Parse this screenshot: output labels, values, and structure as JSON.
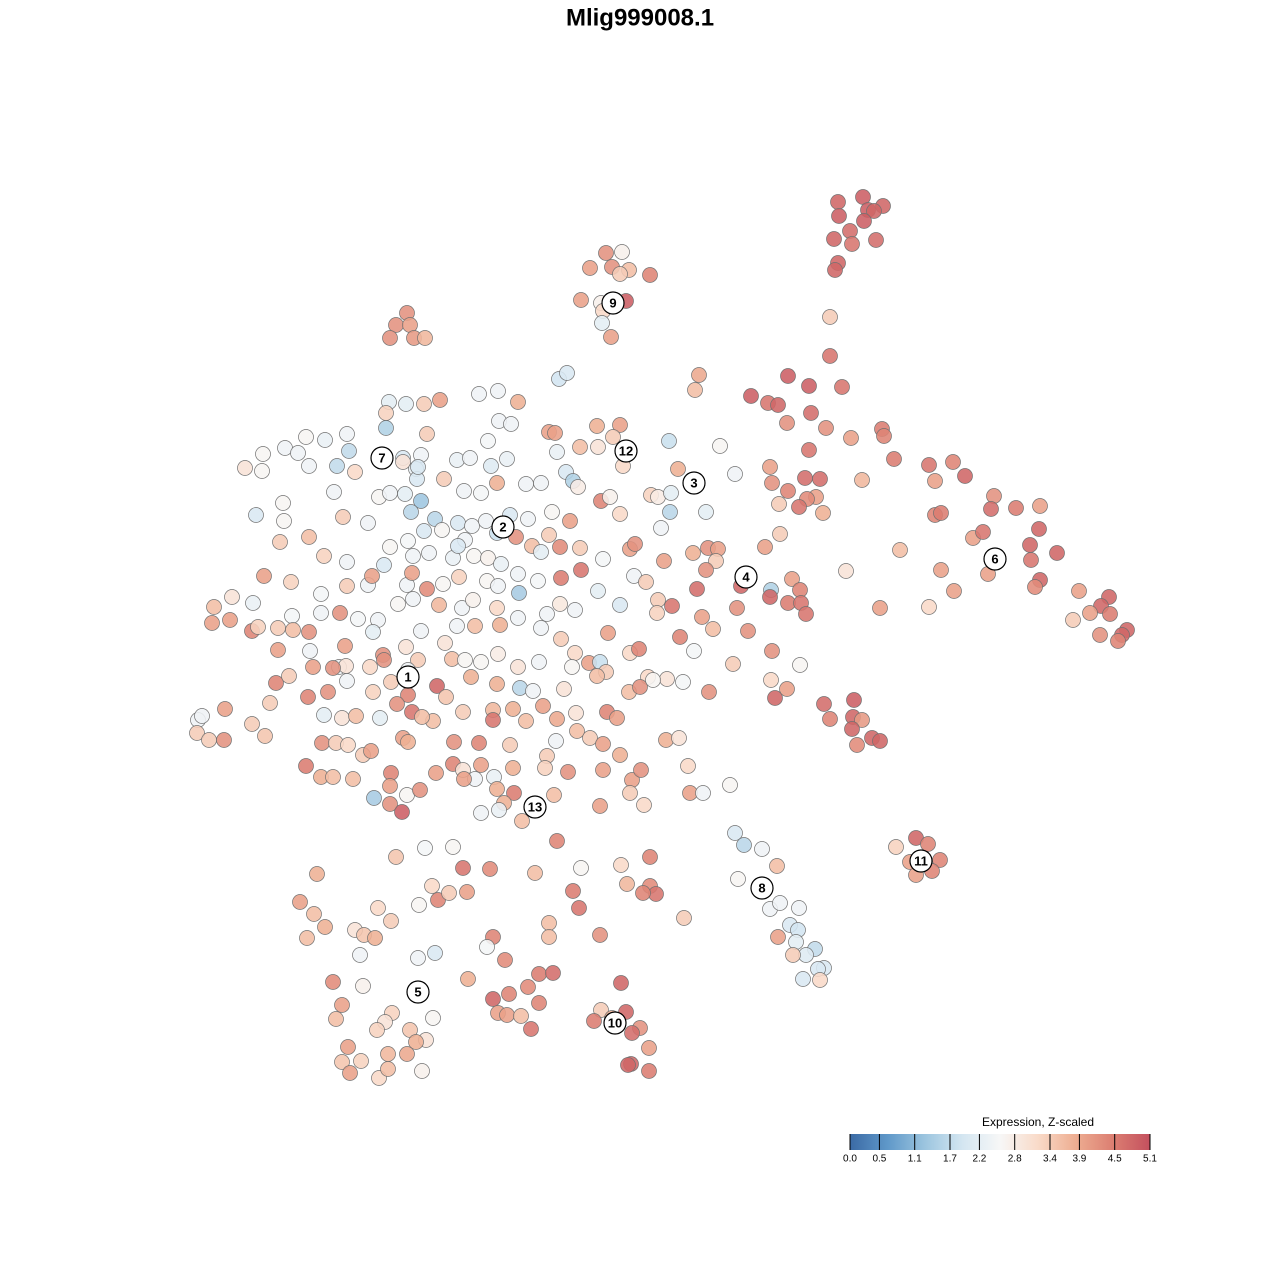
{
  "chart_data": {
    "type": "scatter",
    "title": "Mlig999008.1",
    "xlim": [
      0,
      1280
    ],
    "ylim": [
      1280,
      0
    ],
    "x": [
      863,
      838,
      868,
      883,
      839,
      874,
      864,
      850,
      834,
      852,
      876,
      838,
      835,
      830,
      830,
      699,
      788,
      809,
      842,
      695,
      751,
      768,
      778,
      811,
      787,
      826,
      851,
      882,
      884,
      894,
      929,
      953,
      809,
      770,
      862,
      935,
      965,
      805,
      820,
      816,
      772,
      788,
      807,
      823,
      799,
      779,
      994,
      1016,
      1040,
      991,
      935,
      941,
      973,
      983,
      1039,
      1030,
      1057,
      1031,
      988,
      1040,
      1035,
      941,
      954,
      900,
      846,
      929,
      880,
      1079,
      1109,
      1101,
      1110,
      1090,
      1073,
      1100,
      1127,
      1122,
      1118,
      765,
      780,
      708,
      718,
      693,
      716,
      706,
      741,
      771,
      770,
      792,
      800,
      788,
      801,
      806,
      697,
      737,
      748,
      702,
      713,
      680,
      772,
      800,
      733,
      771,
      787,
      775,
      709,
      683,
      667,
      916,
      896,
      928,
      910,
      940,
      932,
      916,
      735,
      744,
      762,
      777,
      738,
      770,
      780,
      799,
      790,
      798,
      778,
      796,
      815,
      806,
      793,
      824,
      818,
      803,
      820,
      730,
      824,
      854,
      830,
      853,
      862,
      852,
      872,
      880,
      857,
      606,
      622,
      590,
      612,
      629,
      620,
      650,
      581,
      601,
      626,
      603,
      602,
      611,
      407,
      396,
      410,
      390,
      414,
      425,
      317,
      300,
      314,
      325,
      307,
      378,
      391,
      355,
      364,
      375,
      396,
      432,
      419,
      438,
      425,
      453,
      463,
      467,
      449,
      490,
      435,
      418,
      360,
      333,
      363,
      342,
      336,
      392,
      385,
      377,
      433,
      410,
      426,
      416,
      348,
      342,
      361,
      388,
      407,
      350,
      379,
      388,
      422,
      493,
      487,
      468,
      505,
      539,
      553,
      528,
      509,
      493,
      539,
      498,
      507,
      521,
      531,
      549,
      549,
      600,
      573,
      579,
      621,
      601,
      626,
      612,
      594,
      640,
      632,
      649,
      631,
      628,
      649,
      535,
      581,
      621,
      650,
      627,
      650,
      656,
      643,
      684,
      557,
      559,
      567,
      498,
      479,
      518,
      440,
      424,
      406,
      389,
      386,
      386,
      427,
      499,
      511,
      549,
      555,
      597,
      620,
      613,
      580,
      598,
      669,
      720,
      263,
      285,
      306,
      325,
      347,
      349,
      298,
      245,
      262,
      309,
      337,
      355,
      403,
      403,
      421,
      416,
      457,
      470,
      491,
      507,
      488,
      557,
      566,
      573,
      623,
      678,
      735,
      334,
      379,
      390,
      405,
      421,
      444,
      464,
      481,
      497,
      526,
      541,
      578,
      601,
      610,
      651,
      658,
      671,
      256,
      284,
      283,
      343,
      368,
      411,
      435,
      458,
      472,
      486,
      510,
      528,
      552,
      570,
      620,
      670,
      706,
      280,
      309,
      390,
      408,
      424,
      442,
      465,
      497,
      516,
      532,
      549,
      560,
      580,
      630,
      635,
      661,
      664,
      324,
      347,
      384,
      413,
      429,
      453,
      474,
      488,
      501,
      518,
      541,
      603,
      634,
      646,
      264,
      291,
      321,
      347,
      368,
      372,
      407,
      412,
      427,
      443,
      459,
      487,
      498,
      519,
      538,
      561,
      581,
      598,
      232,
      214,
      253,
      292,
      321,
      340,
      358,
      378,
      398,
      413,
      439,
      462,
      473,
      497,
      518,
      547,
      560,
      575,
      620,
      658,
      672,
      657,
      212,
      230,
      252,
      258,
      278,
      293,
      309,
      345,
      373,
      406,
      421,
      445,
      457,
      475,
      500,
      541,
      561,
      575,
      608,
      630,
      639,
      694,
      278,
      310,
      339,
      346,
      383,
      418,
      408,
      452,
      465,
      481,
      498,
      518,
      539,
      572,
      589,
      600,
      606,
      648,
      276,
      289,
      313,
      333,
      347,
      370,
      384,
      391,
      408,
      437,
      446,
      471,
      497,
      520,
      533,
      564,
      597,
      629,
      640,
      653,
      308,
      328,
      373,
      397,
      412,
      433,
      422,
      463,
      493,
      513,
      543,
      557,
      576,
      607,
      617,
      198,
      202,
      225,
      252,
      270,
      324,
      342,
      356,
      380,
      493,
      526,
      556,
      577,
      590,
      603,
      197,
      209,
      224,
      265,
      322,
      336,
      348,
      363,
      371,
      403,
      408,
      454,
      479,
      510,
      547,
      545,
      620,
      666,
      679,
      306,
      321,
      333,
      353,
      391,
      453,
      463,
      494,
      475,
      436,
      464,
      481,
      513,
      568,
      603,
      632,
      641,
      688,
      390,
      407,
      420,
      497,
      514,
      504,
      554,
      630,
      690,
      703,
      374,
      390,
      402,
      481,
      499,
      522,
      600,
      644,
      417,
      418,
      458
    ],
    "y": [
      197,
      202,
      210,
      206,
      216,
      211,
      221,
      231,
      239,
      244,
      240,
      263,
      270,
      317,
      356,
      375,
      376,
      386,
      387,
      390,
      396,
      403,
      405,
      413,
      423,
      428,
      438,
      429,
      436,
      459,
      465,
      462,
      450,
      467,
      480,
      481,
      476,
      478,
      479,
      497,
      483,
      491,
      499,
      513,
      507,
      504,
      496,
      508,
      506,
      509,
      515,
      513,
      538,
      532,
      529,
      545,
      553,
      560,
      574,
      580,
      587,
      570,
      591,
      550,
      571,
      607,
      608,
      591,
      597,
      606,
      614,
      613,
      620,
      635,
      630,
      635,
      641,
      547,
      534,
      548,
      549,
      553,
      561,
      570,
      586,
      590,
      597,
      579,
      590,
      603,
      603,
      614,
      589,
      608,
      631,
      617,
      629,
      637,
      651,
      665,
      664,
      680,
      689,
      698,
      692,
      682,
      679,
      838,
      847,
      844,
      862,
      860,
      871,
      875,
      833,
      845,
      849,
      866,
      879,
      909,
      903,
      908,
      925,
      930,
      937,
      942,
      949,
      955,
      955,
      968,
      969,
      979,
      980,
      785,
      704,
      700,
      719,
      717,
      720,
      729,
      738,
      741,
      745,
      253,
      252,
      268,
      267,
      270,
      274,
      275,
      300,
      303,
      301,
      311,
      323,
      337,
      313,
      325,
      325,
      338,
      338,
      338,
      874,
      902,
      914,
      927,
      938,
      908,
      921,
      930,
      935,
      938,
      857,
      886,
      905,
      900,
      848,
      847,
      868,
      892,
      893,
      869,
      953,
      958,
      955,
      982,
      986,
      1005,
      1019,
      1013,
      1022,
      1030,
      1018,
      1030,
      1040,
      1042,
      1047,
      1062,
      1061,
      1054,
      1054,
      1073,
      1078,
      1069,
      1071,
      937,
      947,
      979,
      960,
      974,
      973,
      987,
      994,
      999,
      1003,
      1013,
      1015,
      1016,
      1029,
      923,
      937,
      935,
      891,
      908,
      983,
      1010,
      1012,
      1018,
      1021,
      1028,
      1033,
      1048,
      1064,
      1065,
      1071,
      873,
      868,
      865,
      857,
      884,
      886,
      894,
      893,
      918,
      841,
      379,
      373,
      391,
      394,
      402,
      400,
      404,
      404,
      402,
      413,
      428,
      434,
      421,
      424,
      432,
      433,
      426,
      425,
      437,
      447,
      447,
      441,
      446,
      454,
      448,
      437,
      440,
      434,
      451,
      453,
      468,
      471,
      466,
      466,
      472,
      458,
      462,
      455,
      469,
      460,
      458,
      466,
      459,
      441,
      452,
      472,
      481,
      466,
      469,
      474,
      492,
      497,
      493,
      494,
      501,
      479,
      491,
      493,
      483,
      484,
      483,
      487,
      501,
      497,
      495,
      497,
      493,
      515,
      521,
      503,
      517,
      523,
      512,
      519,
      523,
      526,
      521,
      515,
      519,
      512,
      521,
      514,
      512,
      512,
      542,
      537,
      547,
      541,
      531,
      530,
      540,
      533,
      537,
      546,
      535,
      547,
      548,
      549,
      544,
      528,
      561,
      556,
      562,
      565,
      556,
      553,
      558,
      556,
      558,
      564,
      574,
      552,
      559,
      576,
      582,
      576,
      582,
      594,
      586,
      585,
      576,
      585,
      573,
      589,
      584,
      577,
      581,
      586,
      593,
      581,
      578,
      570,
      591,
      597,
      607,
      603,
      616,
      613,
      613,
      619,
      620,
      604,
      599,
      605,
      608,
      600,
      608,
      618,
      614,
      604,
      610,
      605,
      600,
      606,
      613,
      623,
      620,
      631,
      627,
      628,
      630,
      632,
      646,
      632,
      647,
      631,
      643,
      626,
      626,
      625,
      628,
      639,
      653,
      633,
      653,
      649,
      651,
      650,
      651,
      667,
      666,
      655,
      660,
      670,
      659,
      660,
      662,
      654,
      667,
      662,
      667,
      663,
      662,
      672,
      677,
      683,
      676,
      667,
      668,
      681,
      667,
      660,
      682,
      695,
      686,
      697,
      677,
      684,
      688,
      691,
      689,
      676,
      692,
      687,
      680,
      697,
      692,
      692,
      704,
      712,
      721,
      717,
      712,
      710,
      709,
      706,
      719,
      713,
      712,
      718,
      720,
      716,
      709,
      724,
      703,
      715,
      718,
      716,
      718,
      720,
      721,
      741,
      731,
      738,
      744,
      733,
      740,
      740,
      736,
      743,
      743,
      745,
      755,
      751,
      738,
      742,
      742,
      743,
      745,
      756,
      768,
      755,
      740,
      738,
      766,
      777,
      777,
      779,
      773,
      764,
      770,
      777,
      779,
      773,
      779,
      765,
      768,
      772,
      770,
      780,
      770,
      766,
      786,
      795,
      790,
      789,
      793,
      803,
      795,
      793,
      793,
      793,
      798,
      804,
      812,
      813,
      810,
      821,
      806,
      805,
      479,
      467,
      546
    ],
    "values": [
      4.9,
      4.8,
      4.9,
      4.8,
      4.9,
      4.8,
      4.9,
      4.7,
      4.8,
      4.6,
      4.7,
      4.8,
      4.8,
      3.4,
      4.6,
      3.9,
      4.9,
      4.9,
      4.6,
      3.6,
      4.9,
      4.6,
      4.8,
      4.7,
      4.2,
      4.2,
      4.0,
      4.5,
      4.4,
      4.5,
      4.6,
      4.4,
      4.6,
      4.0,
      3.7,
      4.0,
      4.8,
      4.7,
      4.7,
      4.0,
      4.2,
      4.4,
      4.3,
      3.8,
      4.6,
      3.4,
      4.2,
      4.5,
      4.0,
      4.7,
      4.4,
      4.5,
      4.0,
      4.6,
      4.8,
      4.8,
      4.8,
      4.6,
      4.0,
      4.8,
      4.3,
      4.0,
      4.0,
      3.6,
      3.0,
      3.2,
      4.0,
      4.0,
      4.8,
      4.8,
      4.5,
      4.0,
      3.4,
      4.2,
      4.8,
      4.8,
      4.4,
      4.0,
      3.4,
      4.2,
      4.0,
      3.8,
      3.4,
      4.2,
      4.8,
      1.5,
      4.8,
      4.0,
      4.4,
      4.5,
      4.6,
      4.6,
      4.7,
      4.2,
      4.2,
      4.0,
      3.6,
      4.4,
      4.2,
      2.6,
      3.4,
      3.2,
      4.0,
      4.8,
      4.2,
      2.5,
      3.0,
      4.8,
      3.3,
      4.4,
      4.0,
      4.4,
      4.4,
      4.0,
      2.0,
      1.6,
      2.4,
      3.6,
      2.6,
      2.4,
      2.4,
      2.4,
      2.0,
      1.9,
      4.0,
      2.2,
      1.7,
      2.1,
      3.4,
      2.0,
      2.0,
      2.0,
      3.2,
      2.6,
      4.7,
      4.9,
      4.4,
      4.8,
      4.1,
      4.8,
      4.8,
      4.8,
      4.3,
      4.2,
      2.7,
      4.0,
      4.2,
      3.6,
      3.4,
      4.4,
      4.0,
      2.7,
      4.9,
      3.2,
      2.2,
      4.0,
      4.2,
      4.2,
      4.0,
      4.2,
      4.1,
      3.7,
      3.8,
      4.0,
      3.6,
      3.8,
      3.6,
      3.2,
      3.4,
      3.0,
      3.5,
      3.8,
      3.5,
      3.2,
      2.6,
      4.4,
      2.5,
      2.6,
      4.6,
      4.0,
      3.4,
      4.3,
      2.0,
      2.4,
      2.4,
      4.3,
      2.7,
      4.0,
      3.6,
      3.3,
      3.0,
      3.3,
      2.6,
      3.5,
      3.0,
      3.8,
      4.0,
      3.5,
      3.3,
      3.7,
      3.9,
      4.0,
      3.2,
      3.6,
      2.7,
      4.4,
      2.5,
      3.8,
      4.3,
      4.5,
      4.7,
      4.3,
      4.4,
      4.8,
      4.4,
      4.0,
      4.0,
      3.6,
      4.6,
      3.6,
      3.6,
      4.2,
      4.5,
      4.6,
      4.8,
      3.4,
      4.8,
      3.8,
      4.5,
      4.2,
      4.7,
      4.0,
      4.8,
      4.8,
      4.5,
      3.6,
      2.6,
      3.2,
      4.4,
      3.7,
      4.3,
      4.6,
      4.4,
      3.4,
      4.4,
      1.9,
      2.0,
      2.4,
      2.4,
      3.8,
      4.0,
      3.4,
      2.2,
      2.2,
      3.3,
      1.5,
      3.4,
      2.4,
      2.4,
      4.0,
      4.0,
      3.8,
      4.0,
      3.4,
      3.6,
      3.0,
      1.8,
      2.6,
      2.6,
      2.4,
      2.6,
      2.3,
      2.4,
      1.7,
      2.4,
      3.0,
      2.6,
      2.4,
      1.7,
      3.2,
      2.0,
      3.0,
      2.4,
      2.3,
      2.3,
      2.4,
      2.1,
      2.3,
      2.5,
      2.3,
      2.0,
      1.5,
      3.2,
      3.8,
      2.4,
      2.4,
      2.6,
      2.4,
      2.2,
      1.3,
      3.4,
      2.4,
      2.5,
      3.8,
      2.4,
      2.4,
      2.8,
      4.4,
      2.7,
      3.3,
      2.8,
      2.2,
      2.0,
      2.6,
      2.6,
      3.4,
      2.4,
      1.6,
      1.6,
      2.0,
      2.4,
      2.4,
      2.0,
      2.4,
      2.6,
      4.0,
      3.2,
      1.6,
      2.2,
      3.4,
      3.6,
      2.6,
      2.5,
      2.0,
      2.6,
      2.4,
      1.8,
      4.2,
      3.6,
      3.4,
      4.3,
      3.4,
      4.0,
      4.2,
      2.4,
      4.0,
      3.3,
      2.4,
      2.0,
      2.4,
      2.4,
      2.3,
      2.6,
      2.7,
      2.3,
      2.4,
      2.2,
      2.5,
      2.4,
      3.4,
      4.0,
      3.3,
      2.5,
      3.4,
      2.4,
      4.0,
      2.4,
      4.0,
      4.3,
      2.6,
      3.3,
      2.6,
      2.4,
      1.4,
      2.5,
      4.5,
      4.6,
      2.2,
      3.0,
      3.6,
      2.3,
      2.5,
      2.4,
      4.2,
      2.5,
      2.4,
      2.6,
      2.4,
      3.7,
      2.4,
      2.7,
      3.2,
      2.4,
      2.4,
      2.9,
      2.4,
      2.0,
      3.4,
      4.6,
      3.3,
      4.0,
      4.0,
      4.4,
      3.3,
      3.4,
      3.6,
      4.2,
      4.0,
      2.2,
      3.0,
      2.4,
      3.0,
      2.4,
      3.6,
      3.8,
      2.4,
      3.4,
      3.2,
      4.0,
      3.2,
      4.4,
      2.5,
      4.0,
      2.4,
      2.4,
      3.0,
      4.2,
      3.4,
      2.4,
      3.6,
      2.6,
      2.6,
      2.8,
      3.0,
      2.4,
      2.6,
      4.0,
      1.8,
      3.4,
      3.2,
      4.4,
      3.4,
      4.0,
      4.2,
      2.4,
      3.2,
      4.2,
      3.4,
      4.4,
      4.8,
      3.5,
      3.8,
      3.8,
      1.6,
      2.4,
      3.0,
      3.6,
      3.6,
      4.2,
      2.6,
      4.4,
      4.2,
      3.3,
      4.2,
      4.6,
      3.6,
      3.6,
      3.4,
      3.7,
      3.8,
      4.0,
      3.9,
      3.0,
      4.4,
      4.0,
      2.4,
      2.4,
      4.0,
      3.4,
      3.4,
      2.2,
      3.0,
      3.6,
      2.2,
      4.6,
      3.6,
      2.4,
      3.6,
      3.4,
      4.0,
      3.4,
      3.4,
      4.2,
      3.5,
      4.2,
      3.4,
      3.2,
      3.4,
      4.0,
      4.0,
      3.8,
      4.2,
      4.4,
      3.4,
      3.4,
      3.3,
      3.8,
      3.8,
      3.0,
      4.5,
      3.8,
      3.6,
      3.6,
      4.4,
      4.4,
      3.0,
      2.3,
      2.4,
      4.0,
      4.0,
      4.0,
      3.8,
      4.2,
      4.0,
      4.0,
      4.2,
      3.2,
      4.0,
      2.6,
      4.2,
      3.8,
      4.5,
      3.8,
      3.6,
      3.4,
      4.0,
      2.4,
      1.4,
      4.2,
      4.9,
      2.4,
      2.3,
      3.6,
      4.0,
      3.2,
      2.0,
      2.0,
      2.0
    ],
    "annotations": [
      {
        "text": "1",
        "x": 408,
        "y": 677
      },
      {
        "text": "2",
        "x": 503,
        "y": 527
      },
      {
        "text": "3",
        "x": 694,
        "y": 483
      },
      {
        "text": "4",
        "x": 746,
        "y": 577
      },
      {
        "text": "5",
        "x": 418,
        "y": 992
      },
      {
        "text": "6",
        "x": 995,
        "y": 559
      },
      {
        "text": "7",
        "x": 382,
        "y": 458
      },
      {
        "text": "8",
        "x": 762,
        "y": 888
      },
      {
        "text": "9",
        "x": 613,
        "y": 303
      },
      {
        "text": "10",
        "x": 615,
        "y": 1023
      },
      {
        "text": "11",
        "x": 921,
        "y": 861
      },
      {
        "text": "12",
        "x": 626,
        "y": 451
      },
      {
        "text": "13",
        "x": 535,
        "y": 807
      }
    ],
    "colorbar": {
      "title": "Expression, Z-scaled",
      "clim": [
        0,
        5.1
      ],
      "ticks": [
        {
          "value": 0,
          "label": "0.0"
        },
        0.5,
        1.1,
        1.7,
        2.2,
        2.8,
        3.4,
        3.9,
        4.5,
        5.1
      ],
      "colors": [
        "#3b6aa5",
        "#5f98c9",
        "#9cc5df",
        "#d4e6f1",
        "#f7f7f7",
        "#f9dbc9",
        "#eeae92",
        "#dc7f72",
        "#c4505e"
      ]
    }
  }
}
